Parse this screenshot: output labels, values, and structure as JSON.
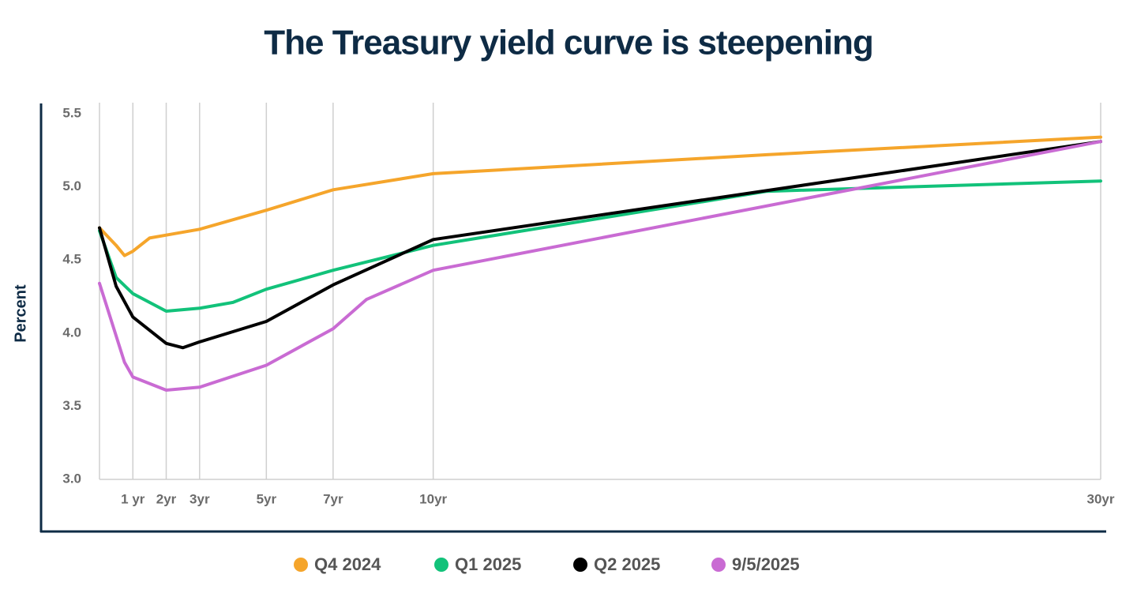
{
  "chart_data": {
    "type": "line",
    "title": "The Treasury yield curve is steepening",
    "y_label": "Percent",
    "xlim": [
      0,
      30
    ],
    "xticks": [
      {
        "value": 1,
        "label": "1 yr"
      },
      {
        "value": 2,
        "label": "2yr"
      },
      {
        "value": 3,
        "label": "3yr"
      },
      {
        "value": 5,
        "label": "5yr"
      },
      {
        "value": 7,
        "label": "7yr"
      },
      {
        "value": 10,
        "label": "10yr"
      },
      {
        "value": 30,
        "label": "30yr"
      }
    ],
    "ylim": [
      3,
      5.5
    ],
    "yticks": [
      {
        "value": 3,
        "label": "3.0"
      },
      3.5,
      {
        "value": 4,
        "label": "4.0"
      },
      4.5,
      {
        "value": 5,
        "label": "5.0"
      },
      5.5
    ],
    "grid": true,
    "series": [
      {
        "name": "Q4 2024",
        "color": "#f5a52b",
        "x": [
          0,
          0.5,
          0.75,
          1,
          1.5,
          2,
          3,
          5,
          7,
          10,
          20,
          30
        ],
        "values": [
          4.72,
          4.6,
          4.53,
          4.56,
          4.65,
          4.67,
          4.71,
          4.84,
          4.98,
          5.09,
          5.22,
          5.34
        ]
      },
      {
        "name": "Q1 2025",
        "color": "#12c27a",
        "x": [
          0,
          0.5,
          1,
          2,
          3,
          4,
          5,
          7,
          10,
          20,
          30
        ],
        "values": [
          4.7,
          4.38,
          4.27,
          4.15,
          4.17,
          4.21,
          4.3,
          4.43,
          4.6,
          4.97,
          5.04
        ]
      },
      {
        "name": "Q2 2025",
        "color": "#000000",
        "x": [
          0,
          0.5,
          1,
          2,
          2.5,
          3,
          5,
          7,
          10,
          30
        ],
        "values": [
          4.72,
          4.32,
          4.11,
          3.93,
          3.9,
          3.94,
          4.08,
          4.33,
          4.64,
          5.31
        ]
      },
      {
        "name": "9/5/2025",
        "color": "#c96bd3",
        "x": [
          0,
          0.75,
          1,
          2,
          3,
          5,
          7,
          8,
          10,
          30
        ],
        "values": [
          4.34,
          3.8,
          3.7,
          3.61,
          3.63,
          3.78,
          4.03,
          4.23,
          4.43,
          5.31
        ]
      }
    ]
  }
}
